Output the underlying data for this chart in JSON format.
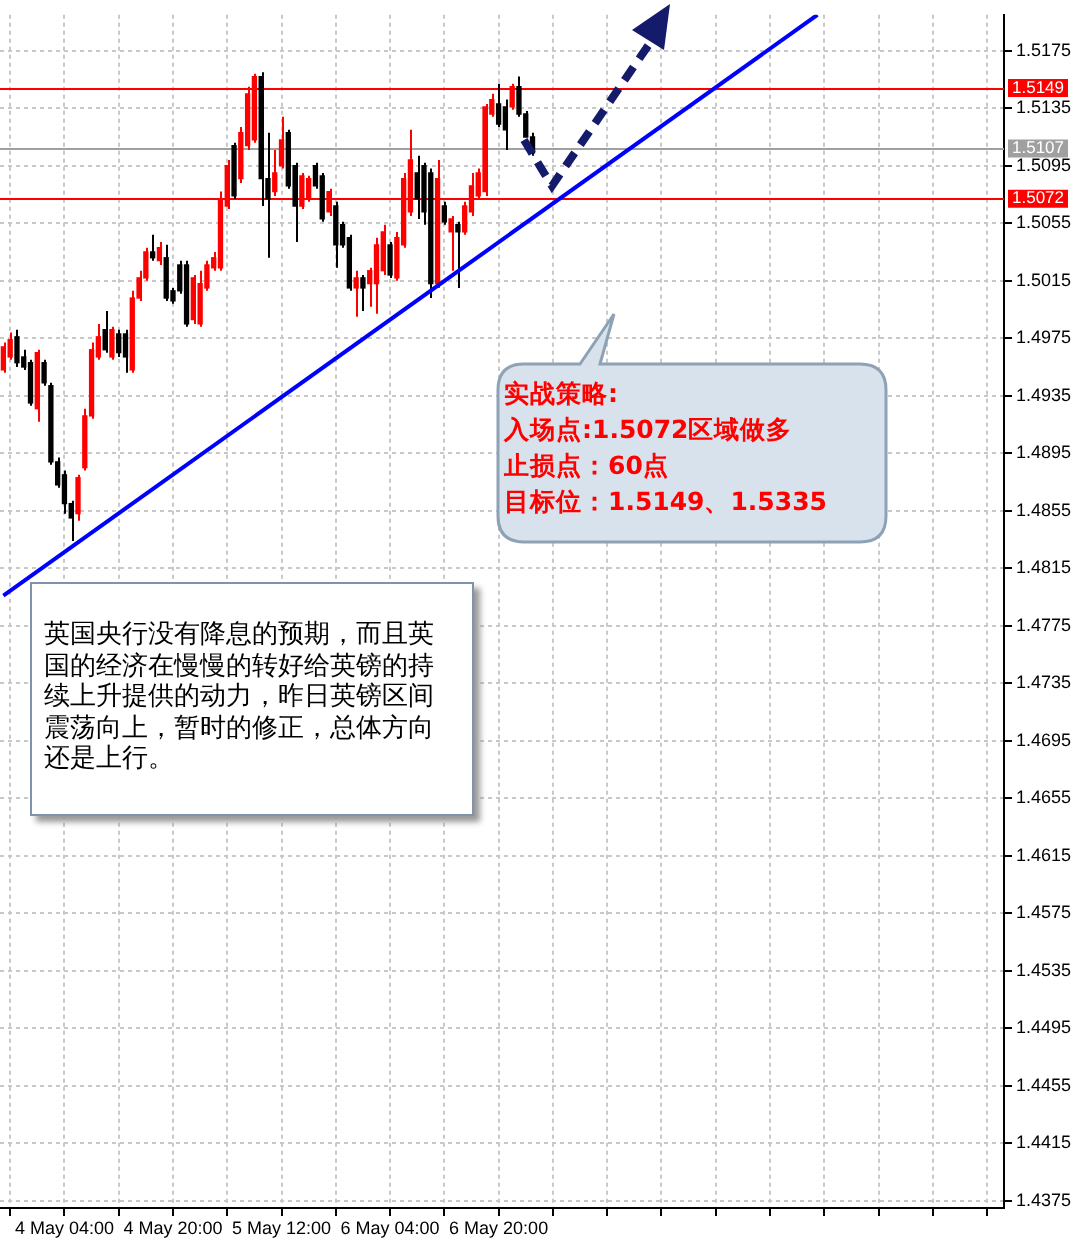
{
  "chart_data": {
    "type": "candlestick",
    "categories": [
      null,
      null,
      null,
      null,
      null,
      null,
      null,
      null,
      null,
      "4 May 04:00",
      null,
      null,
      null,
      null,
      null,
      null,
      null,
      null,
      null,
      null,
      null,
      null,
      null,
      null,
      null,
      "4 May 20:00",
      null,
      null,
      null,
      null,
      null,
      null,
      null,
      null,
      null,
      null,
      null,
      null,
      null,
      null,
      null,
      "5 May 12:00",
      null,
      null,
      null,
      null,
      null,
      null,
      null,
      null,
      null,
      null,
      null,
      null,
      null,
      null,
      null,
      "6 May 04:00",
      null,
      null,
      null,
      null,
      null,
      null,
      null,
      null,
      null,
      null,
      null,
      null,
      null,
      null,
      null,
      "6 May 20:00",
      null,
      null,
      null,
      null,
      null,
      null,
      null,
      null,
      null,
      null,
      null,
      null,
      null,
      null,
      null,
      null,
      null,
      null,
      null,
      null,
      null,
      null,
      null,
      null,
      null,
      null,
      null,
      null,
      null,
      null,
      null,
      null,
      null,
      null,
      null,
      null,
      null,
      null,
      null,
      null,
      null,
      null,
      null,
      null,
      null,
      null,
      null,
      null,
      null,
      null,
      null,
      null,
      null,
      null,
      null,
      null,
      null,
      null,
      null,
      null,
      null,
      null,
      null,
      null,
      null,
      null,
      null,
      null,
      null,
      null,
      null,
      null,
      null,
      null
    ],
    "ohlc": [
      [
        1.4953,
        1.4972,
        1.4951,
        1.4969
      ],
      [
        1.4962,
        1.4979,
        1.496,
        1.4974
      ],
      [
        1.4976,
        1.4981,
        1.4955,
        1.4958
      ],
      [
        1.4962,
        1.4967,
        1.4953,
        1.4955
      ],
      [
        1.4958,
        1.496,
        1.4928,
        1.493
      ],
      [
        1.4926,
        1.4967,
        1.4917,
        1.4965
      ],
      [
        1.4958,
        1.496,
        1.4942,
        1.4944
      ],
      [
        1.4942,
        1.4944,
        1.4887,
        1.4889
      ],
      [
        1.4889,
        1.4892,
        1.4871,
        1.4873
      ],
      [
        1.488,
        1.4883,
        1.4853,
        1.486
      ],
      [
        1.486,
        1.4862,
        1.4834,
        1.485
      ],
      [
        1.4853,
        1.488,
        1.4848,
        1.4878
      ],
      [
        1.4885,
        1.4926,
        1.4883,
        1.4921
      ],
      [
        1.4921,
        1.4972,
        1.4919,
        1.4967
      ],
      [
        1.4962,
        1.4985,
        1.496,
        1.4976
      ],
      [
        1.4981,
        1.4994,
        1.4965,
        1.4967
      ],
      [
        1.4962,
        1.4983,
        1.496,
        1.4981
      ],
      [
        1.4978,
        1.4981,
        1.4962,
        1.4965
      ],
      [
        1.4978,
        1.4981,
        1.4951,
        1.4962
      ],
      [
        1.4953,
        1.5008,
        1.4951,
        1.5003
      ],
      [
        1.5003,
        1.5022,
        1.5001,
        1.5017
      ],
      [
        1.5017,
        1.5038,
        1.5015,
        1.5035
      ],
      [
        1.5035,
        1.5047,
        1.5029,
        1.5031
      ],
      [
        1.5029,
        1.5042,
        1.5026,
        1.5038
      ],
      [
        1.5031,
        1.504,
        1.5001,
        1.5003
      ],
      [
        1.5008,
        1.501,
        1.4999,
        1.5001
      ],
      [
        1.5026,
        1.5029,
        1.5006,
        1.5008
      ],
      [
        1.5026,
        1.5029,
        1.4983,
        1.4985
      ],
      [
        1.4988,
        1.5019,
        1.4985,
        1.5017
      ],
      [
        1.4985,
        1.5022,
        1.4983,
        1.5013
      ],
      [
        1.501,
        1.5029,
        1.5008,
        1.5026
      ],
      [
        1.5024,
        1.5035,
        1.5022,
        1.5031
      ],
      [
        1.5024,
        1.5077,
        1.5022,
        1.5072
      ],
      [
        1.5067,
        1.5099,
        1.5065,
        1.5095
      ],
      [
        1.5109,
        1.5111,
        1.5072,
        1.5074
      ],
      [
        1.5086,
        1.5122,
        1.5083,
        1.5118
      ],
      [
        1.5109,
        1.515,
        1.5106,
        1.5145
      ],
      [
        1.5113,
        1.5159,
        1.5111,
        1.5157
      ],
      [
        1.5157,
        1.516,
        1.5067,
        1.5086
      ],
      [
        1.5086,
        1.5118,
        1.5031,
        1.5072
      ],
      [
        1.5077,
        1.5106,
        1.5074,
        1.509
      ],
      [
        1.5095,
        1.5129,
        1.5093,
        1.5113
      ],
      [
        1.5118,
        1.512,
        1.5079,
        1.5081
      ],
      [
        1.5095,
        1.5097,
        1.5042,
        1.5067
      ],
      [
        1.5067,
        1.509,
        1.5065,
        1.5088
      ],
      [
        1.5072,
        1.5088,
        1.507,
        1.5086
      ],
      [
        1.5095,
        1.5097,
        1.5079,
        1.5081
      ],
      [
        1.5088,
        1.509,
        1.5056,
        1.5058
      ],
      [
        1.5063,
        1.5079,
        1.506,
        1.5077
      ],
      [
        1.5067,
        1.507,
        1.5024,
        1.504
      ],
      [
        1.5054,
        1.5056,
        1.5038,
        1.504
      ],
      [
        1.5045,
        1.5047,
        1.5008,
        1.501
      ],
      [
        1.501,
        1.5022,
        1.499,
        1.5017
      ],
      [
        1.5017,
        1.5019,
        1.4994,
        1.501
      ],
      [
        1.5013,
        1.5024,
        1.4997,
        1.5022
      ],
      [
        1.5013,
        1.5045,
        1.4992,
        1.504
      ],
      [
        1.5022,
        1.5054,
        1.5019,
        1.5049
      ],
      [
        1.504,
        1.5042,
        1.5017,
        1.5019
      ],
      [
        1.5017,
        1.5049,
        1.5015,
        1.5045
      ],
      [
        1.504,
        1.509,
        1.5038,
        1.5086
      ],
      [
        1.5063,
        1.512,
        1.506,
        1.5099
      ],
      [
        1.509,
        1.5102,
        1.5058,
        1.5072
      ],
      [
        1.5095,
        1.5097,
        1.5054,
        1.5063
      ],
      [
        1.509,
        1.5093,
        1.5003,
        1.5013
      ],
      [
        1.5013,
        1.5099,
        1.501,
        1.5086
      ],
      [
        1.5067,
        1.507,
        1.5054,
        1.5056
      ],
      [
        1.5049,
        1.506,
        1.5022,
        1.5058
      ],
      [
        1.5054,
        1.5056,
        1.501,
        1.5049
      ],
      [
        1.5049,
        1.507,
        1.5047,
        1.5067
      ],
      [
        1.5063,
        1.509,
        1.506,
        1.5081
      ],
      [
        1.5074,
        1.5093,
        1.5072,
        1.509
      ],
      [
        1.5077,
        1.5138,
        1.5074,
        1.5136
      ],
      [
        1.5131,
        1.5145,
        1.5129,
        1.5141
      ],
      [
        1.5138,
        1.5152,
        1.5122,
        1.5124
      ],
      [
        1.5136,
        1.5141,
        1.5106,
        1.512
      ],
      [
        1.5136,
        1.5152,
        1.5134,
        1.515
      ],
      [
        1.515,
        1.5157,
        1.5129,
        1.5131
      ],
      [
        1.5131,
        1.5133,
        1.5115,
        1.5115
      ],
      [
        1.5115,
        1.5118,
        1.5102,
        1.5104
      ],
      null,
      null,
      null,
      null,
      null,
      null,
      null,
      null,
      null,
      null,
      null,
      null,
      null,
      null,
      null,
      null,
      null,
      null,
      null,
      null,
      null,
      null,
      null,
      null,
      null,
      null,
      null,
      null,
      null,
      null,
      null,
      null,
      null,
      null,
      null,
      null,
      null,
      null,
      null,
      null,
      null,
      null,
      null,
      null,
      null,
      null,
      null,
      null,
      null,
      null,
      null,
      null,
      null,
      null,
      null,
      null,
      null,
      null,
      null,
      null,
      null,
      null,
      null,
      null,
      null,
      null,
      null,
      null,
      null
    ],
    "colors": [
      "#ff0000",
      "#ff0000",
      "#000000",
      "#000000",
      "#000000",
      "#ff0000",
      "#000000",
      "#000000",
      "#000000",
      "#000000",
      "#000000",
      "#ff0000",
      "#ff0000",
      "#ff0000",
      "#ff0000",
      "#000000",
      "#ff0000",
      "#000000",
      "#000000",
      "#ff0000",
      "#ff0000",
      "#ff0000",
      "#000000",
      "#ff0000",
      "#000000",
      "#000000",
      "#000000",
      "#000000",
      "#ff0000",
      "#ff0000",
      "#ff0000",
      "#ff0000",
      "#ff0000",
      "#ff0000",
      "#000000",
      "#ff0000",
      "#ff0000",
      "#ff0000",
      "#000000",
      "#000000",
      "#ff0000",
      "#ff0000",
      "#000000",
      "#000000",
      "#ff0000",
      "#ff0000",
      "#000000",
      "#000000",
      "#ff0000",
      "#000000",
      "#000000",
      "#000000",
      "#ff0000",
      "#000000",
      "#ff0000",
      "#ff0000",
      "#ff0000",
      "#000000",
      "#ff0000",
      "#ff0000",
      "#ff0000",
      "#000000",
      "#000000",
      "#000000",
      "#ff0000",
      "#000000",
      "#ff0000",
      "#000000",
      "#ff0000",
      "#ff0000",
      "#ff0000",
      "#ff0000",
      "#ff0000",
      "#000000",
      "#000000",
      "#ff0000",
      "#000000",
      "#000000",
      "#000000",
      null,
      null,
      null,
      null,
      null,
      null,
      null,
      null,
      null,
      null,
      null,
      null,
      null,
      null,
      null,
      null,
      null,
      null,
      null,
      null,
      null,
      null,
      null,
      null,
      null,
      null,
      null,
      null,
      null,
      null,
      null,
      null,
      null,
      null,
      null,
      null,
      null,
      null,
      null,
      null,
      null,
      null,
      null,
      null,
      null,
      null,
      null,
      null,
      null,
      null,
      null,
      null,
      null,
      null,
      null,
      null,
      null,
      null,
      null,
      null,
      null,
      null,
      null,
      null,
      null,
      null,
      null,
      null,
      null
    ],
    "series": [
      {
        "type": "line",
        "values": [
          1.4796,
          null,
          null,
          null,
          null,
          null,
          null,
          null,
          null,
          null,
          null,
          null,
          null,
          null,
          null,
          null,
          null,
          null,
          null,
          null,
          null,
          null,
          null,
          null,
          null,
          null,
          null,
          null,
          null,
          null,
          null,
          null,
          null,
          null,
          null,
          null,
          null,
          null,
          null,
          null,
          null,
          null,
          null,
          null,
          null,
          null,
          null,
          null,
          null,
          null,
          null,
          null,
          null,
          null,
          null,
          null,
          null,
          null,
          null,
          null,
          null,
          null,
          null,
          null,
          null,
          null,
          null,
          null,
          null,
          null,
          null,
          null,
          null,
          null,
          null,
          null,
          null,
          null,
          null,
          null,
          null,
          null,
          null,
          null,
          null,
          null,
          null,
          null,
          null,
          null,
          null,
          null,
          null,
          null,
          null,
          null,
          null,
          null,
          null,
          null,
          null,
          null,
          null,
          null,
          null,
          null,
          null,
          null,
          null,
          null,
          null,
          null,
          null,
          null,
          null,
          null,
          null,
          null,
          null,
          null,
          1.52,
          null,
          null,
          null,
          null,
          null,
          null,
          null,
          null,
          null,
          null,
          null,
          null,
          null,
          null,
          null,
          null,
          null,
          null,
          null,
          null,
          null,
          null,
          null,
          null,
          null,
          null,
          null
        ],
        "color": "#0000ff"
      }
    ],
    "ylim": [
      1.437,
      1.52
    ],
    "yticks": [
      1.4375,
      1.4415,
      1.4455,
      1.4495,
      1.4535,
      1.4575,
      1.4615,
      1.4655,
      1.4695,
      1.4735,
      1.4775,
      1.4815,
      1.4855,
      1.4895,
      1.4935,
      1.4975,
      1.5015,
      1.5055,
      1.5095,
      1.5135,
      1.5175
    ],
    "ref_lines": [
      {
        "axis": "y",
        "value": 1.5149,
        "label": "1.5149",
        "color": "#ff0000"
      },
      {
        "axis": "y",
        "value": 1.5107,
        "label": "1.5107",
        "color": "#a0a0a0"
      },
      {
        "axis": "y",
        "value": 1.5072,
        "label": "1.5072",
        "color": "#ff0000"
      }
    ],
    "annotations": [
      "实战策略:",
      "入场点:1.5072区域做多",
      "止损点：60点",
      "目标位：1.5149、1.5335",
      "英国央行没有降息的预期，而且英国的经济在慢慢的转好给英镑的持续上升提供的动力，昨日英镑区间震荡向上，暂时的修正，总体方向还是上行。"
    ],
    "grid": true,
    "legend": false
  }
}
